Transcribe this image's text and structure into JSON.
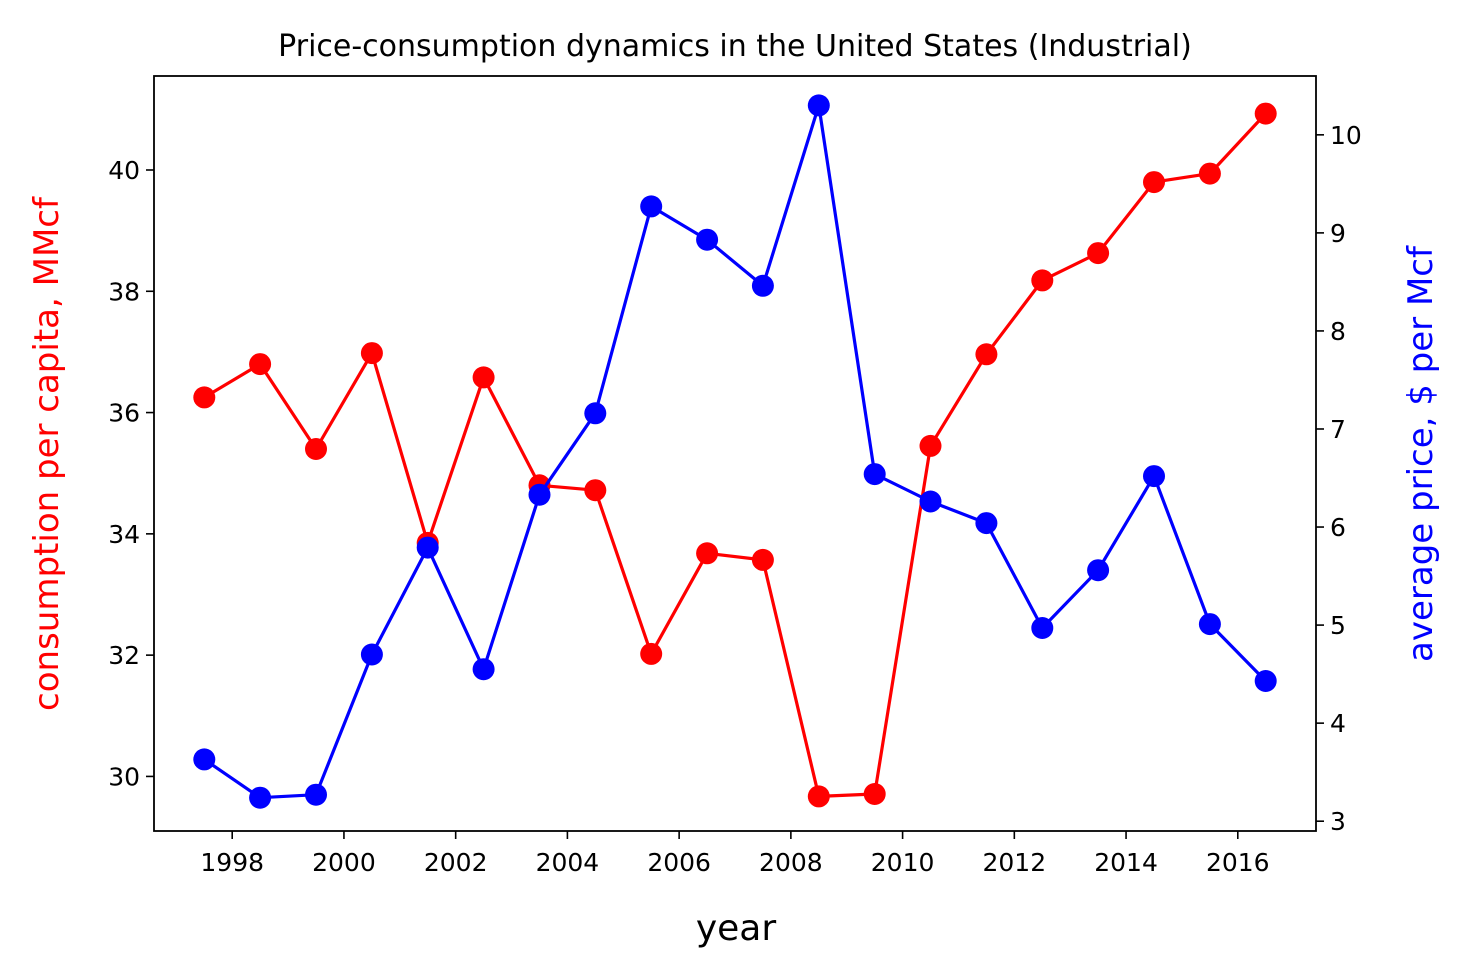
{
  "chart_data": {
    "type": "line",
    "title": "Price-consumption dynamics in the United States (Industrial)",
    "xlabel": "year",
    "ylabel_left": "consumption per capita, MMcf",
    "ylabel_right": "average price, $ per Mcf",
    "x": [
      1997.5,
      1998.5,
      1999.5,
      2000.5,
      2001.5,
      2002.5,
      2003.5,
      2004.5,
      2005.5,
      2006.5,
      2007.5,
      2008.5,
      2009.5,
      2010.5,
      2011.5,
      2012.5,
      2013.5,
      2014.5,
      2015.5,
      2016.5
    ],
    "xlim": [
      1996.6,
      2017.4
    ],
    "xticks": [
      1998,
      2000,
      2002,
      2004,
      2006,
      2008,
      2010,
      2012,
      2014,
      2016
    ],
    "ylim_left": [
      29.1,
      41.55
    ],
    "yticks_left": [
      30,
      32,
      34,
      36,
      38,
      40
    ],
    "ylim_right": [
      2.9,
      10.6
    ],
    "yticks_right": [
      3,
      4,
      5,
      6,
      7,
      8,
      9,
      10
    ],
    "grid": false,
    "series": [
      {
        "axis": "left",
        "color": "#ff0000",
        "values": [
          36.25,
          36.8,
          35.4,
          36.98,
          33.85,
          36.58,
          34.8,
          34.72,
          32.02,
          33.68,
          33.57,
          29.67,
          29.71,
          35.45,
          36.96,
          38.18,
          38.63,
          39.8,
          39.94,
          40.93
        ]
      },
      {
        "axis": "right",
        "color": "#0000ff",
        "values": [
          3.63,
          3.24,
          3.27,
          4.7,
          5.79,
          4.55,
          6.33,
          7.16,
          9.27,
          8.93,
          8.46,
          10.3,
          6.54,
          6.26,
          6.04,
          4.97,
          5.56,
          6.52,
          5.01,
          4.43
        ]
      }
    ]
  }
}
